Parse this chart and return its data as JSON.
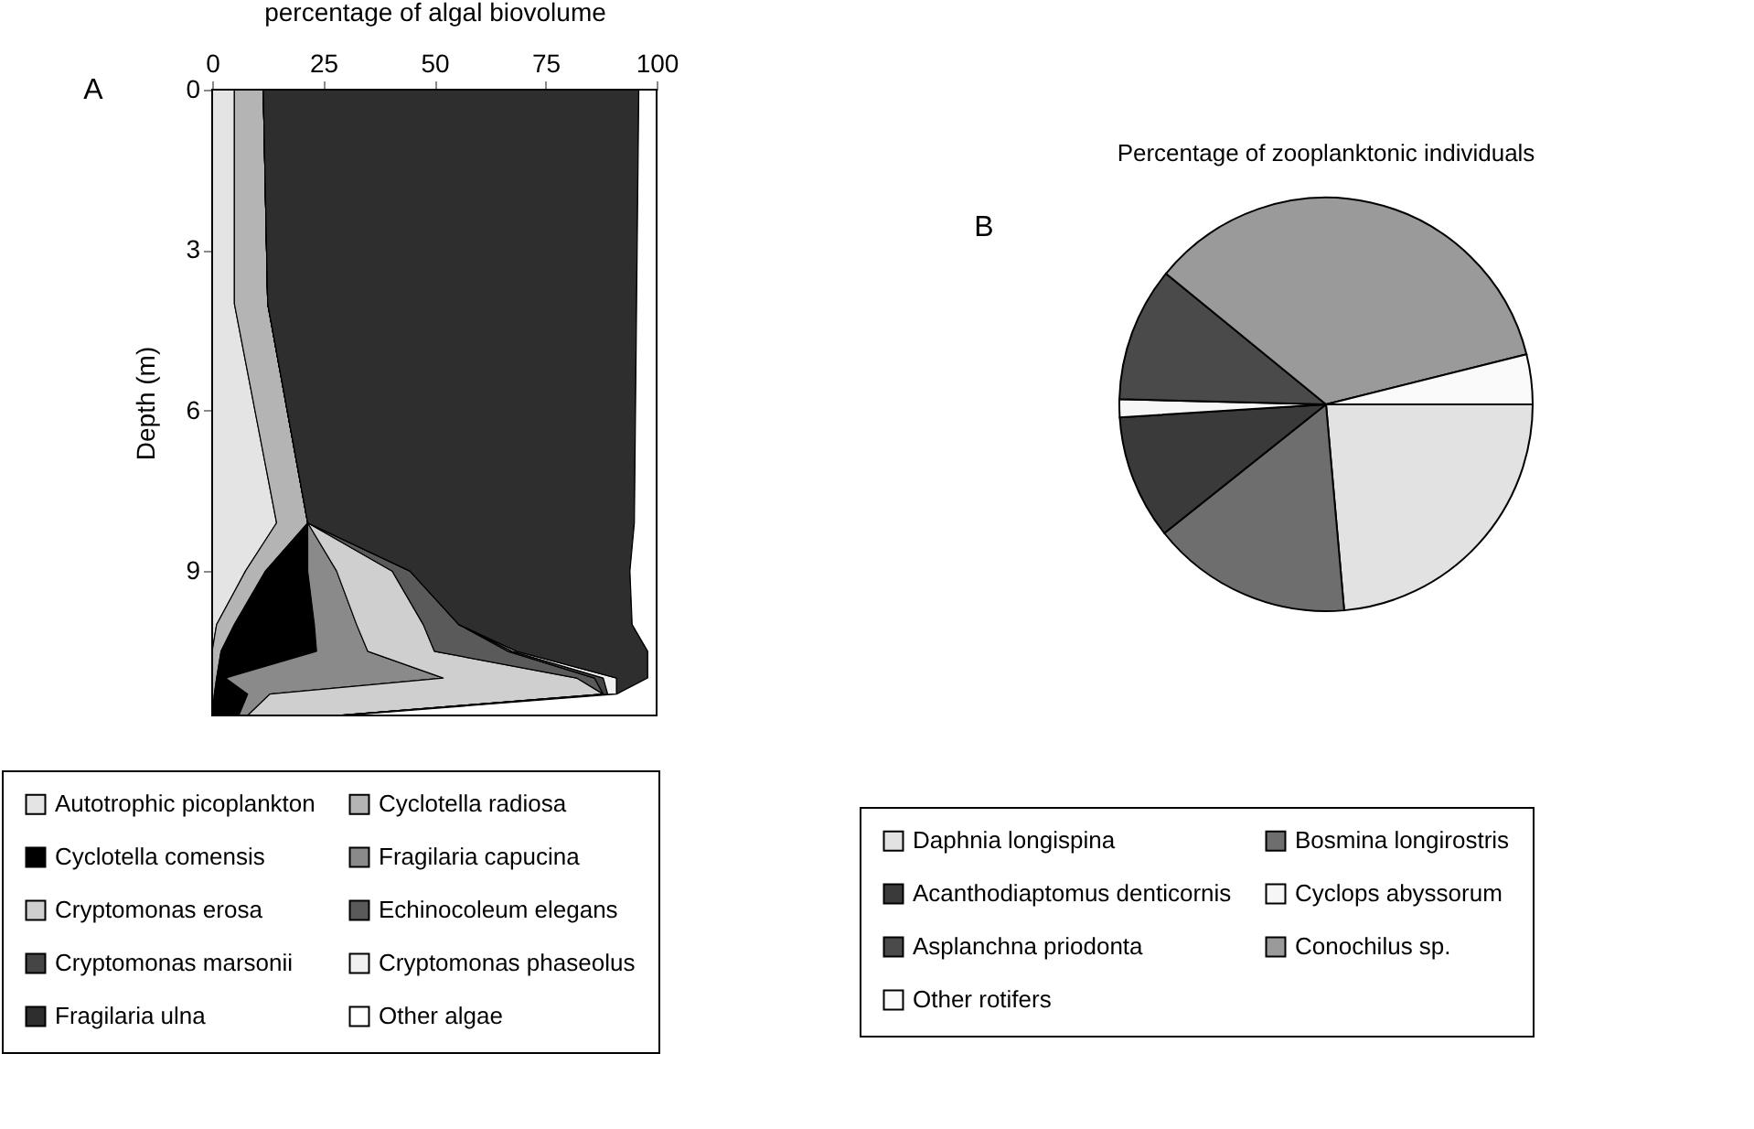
{
  "chart_data": [
    {
      "type": "area",
      "stacked": true,
      "orientation": "horizontal",
      "xlabel": "percentage of algal biovolume",
      "ylabel": "Depth (m)",
      "annotations": [
        "A"
      ],
      "legend": "bottom",
      "x": [
        0,
        4,
        8.1,
        9,
        10,
        10.5,
        11,
        11.3,
        11.7
      ],
      "xlim": [
        0,
        100
      ],
      "xticks": [
        0,
        25,
        50,
        75,
        100
      ],
      "ylim": [
        11.7,
        0
      ],
      "yticks": [
        0,
        3,
        6,
        9
      ],
      "series": [
        {
          "name": "Autotrophic picoplankton",
          "color": "#e4e4e4",
          "values": [
            5,
            5,
            14.5,
            7.5,
            1,
            0,
            0,
            0,
            0
          ]
        },
        {
          "name": "Cyclotella radiosa",
          "color": "#b4b4b4",
          "values": [
            6.5,
            7.5,
            7,
            4.5,
            4,
            2,
            1,
            0.5,
            0
          ]
        },
        {
          "name": "Cyclotella comensis",
          "color": "#000000",
          "values": [
            0,
            0,
            0,
            9.5,
            18,
            21.5,
            2,
            7.5,
            6
          ]
        },
        {
          "name": "Fragilaria capucina",
          "color": "#8a8a8a",
          "values": [
            0,
            0,
            0,
            6.5,
            9.5,
            11.5,
            49,
            5,
            2
          ]
        },
        {
          "name": "Cryptomonas erosa",
          "color": "#cfcfcf",
          "values": [
            0,
            0,
            0,
            12.5,
            15,
            15,
            30,
            75,
            20
          ]
        },
        {
          "name": "Echinocoleum elegans",
          "color": "#5a5a5a",
          "values": [
            0,
            0,
            0,
            4,
            8,
            16.5,
            4,
            0,
            0
          ]
        },
        {
          "name": "Cryptomonas marsonii",
          "color": "#454545",
          "values": [
            0,
            0,
            0,
            0,
            0,
            1,
            2,
            1,
            0
          ]
        },
        {
          "name": "Cryptomonas phaseolus",
          "color": "#f0f0f0",
          "values": [
            0,
            0,
            0,
            0,
            0,
            1,
            3,
            2,
            2
          ]
        },
        {
          "name": "Fragilaria ulna",
          "color": "#2e2e2e",
          "values": [
            84.5,
            83,
            73.5,
            49.5,
            39,
            29.5,
            7,
            0,
            0
          ]
        },
        {
          "name": "Other algae",
          "color": "#ffffff",
          "values": [
            4,
            4.5,
            5,
            6,
            5.5,
            2,
            2,
            9,
            70
          ]
        }
      ]
    },
    {
      "type": "pie",
      "title": "Percentage of zooplanktonic individuals",
      "annotations": [
        "B"
      ],
      "legend": "bottom",
      "categories": [
        "Daphnia longispina",
        "Bosmina longirostris",
        "Acanthodiaptomus denticornis",
        "Cyclops abyssorum",
        "Asplanchna priodonta",
        "Conochilus sp.",
        "Other rotifers"
      ],
      "values": [
        23.6,
        15.7,
        9.7,
        1.4,
        10.5,
        35.2,
        3.9
      ],
      "colors": [
        "#e2e2e2",
        "#6e6e6e",
        "#3a3a3a",
        "#f6f6f6",
        "#4a4a4a",
        "#9a9a9a",
        "#fafafa"
      ]
    }
  ]
}
